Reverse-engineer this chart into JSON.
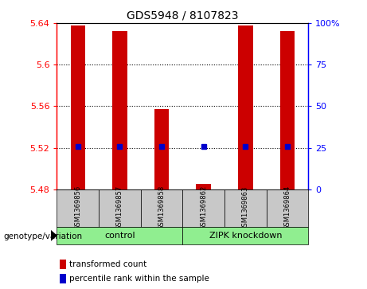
{
  "title": "GDS5948 / 8107823",
  "samples": [
    "GSM1369856",
    "GSM1369857",
    "GSM1369858",
    "GSM1369862",
    "GSM1369863",
    "GSM1369864"
  ],
  "red_values": [
    5.638,
    5.632,
    5.557,
    5.485,
    5.638,
    5.632
  ],
  "blue_values": [
    5.521,
    5.521,
    5.521,
    5.521,
    5.521,
    5.521
  ],
  "baseline": 5.48,
  "ylim_left": [
    5.48,
    5.64
  ],
  "yticks_left": [
    5.48,
    5.52,
    5.56,
    5.6,
    5.64
  ],
  "ytick_labels_left": [
    "5.48",
    "5.52",
    "5.56",
    "5.6",
    "5.64"
  ],
  "yticks_right": [
    0,
    25,
    50,
    75,
    100
  ],
  "ytick_labels_right": [
    "0",
    "25",
    "50",
    "75",
    "100%"
  ],
  "ylim_right": [
    0,
    100
  ],
  "groups": [
    {
      "label": "control",
      "indices": [
        0,
        1,
        2
      ],
      "color": "#90EE90"
    },
    {
      "label": "ZIPK knockdown",
      "indices": [
        3,
        4,
        5
      ],
      "color": "#90EE90"
    }
  ],
  "group_label": "genotype/variation",
  "bar_color": "#CC0000",
  "dot_color": "#0000CC",
  "bg_color": "#C8C8C8",
  "plot_bg": "#FFFFFF",
  "legend_items": [
    {
      "label": "transformed count",
      "color": "#CC0000"
    },
    {
      "label": "percentile rank within the sample",
      "color": "#0000CC"
    }
  ],
  "bar_width": 0.35
}
